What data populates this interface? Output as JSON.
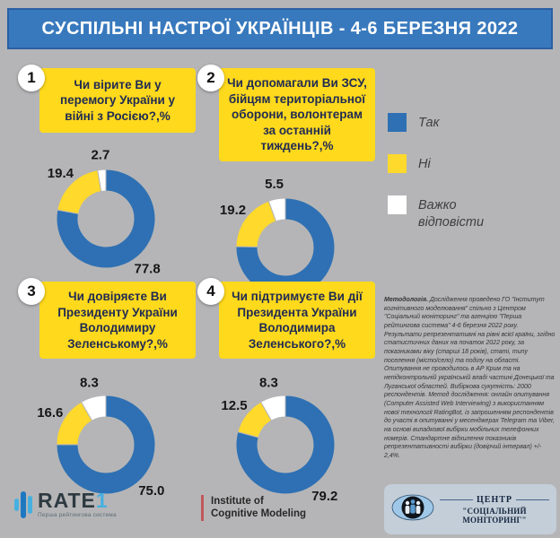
{
  "header": {
    "title": "СУСПІЛЬНІ НАСТРОЇ УКРАЇНЦІВ - 4-6 БЕРЕЗНЯ 2022"
  },
  "colors": {
    "background": "#b5b5b7",
    "header": "#3879bd",
    "header_border": "#2b5fa3",
    "yellow_box": "#ffd91c",
    "donut_blue": "#2e70b3",
    "donut_yellow": "#ffd92b",
    "donut_white": "#ffffff"
  },
  "legend": {
    "items": [
      {
        "label": "Так",
        "color": "#2e70b3"
      },
      {
        "label": "Ні",
        "color": "#ffd92b"
      },
      {
        "label": "Важко відповісти",
        "color": "#ffffff"
      }
    ]
  },
  "questions": [
    {
      "number": "1",
      "text": "Чи вірите Ви у перемогу України у війні з Росією?,%"
    },
    {
      "number": "2",
      "text": "Чи допомагали Ви ЗСУ, бійцям територіальної оборони, волонтерам за останній тиждень?,%"
    },
    {
      "number": "3",
      "text": "Чи довіряєте Ви Президенту України Володимиру Зеленському?,%"
    },
    {
      "number": "4",
      "text": "Чи підтримуєте Ви дії Президента України Володимира Зеленського?,%"
    }
  ],
  "chart_data": [
    {
      "type": "pie",
      "title": "Чи вірите Ви у перемогу України у війні з Росією?,%",
      "labels": [
        "Так",
        "Ні",
        "Важко відповісти"
      ],
      "values": [
        77.8,
        19.4,
        2.7
      ],
      "colors": [
        "#2e70b3",
        "#ffd92b",
        "#ffffff"
      ],
      "legend_position": "right"
    },
    {
      "type": "pie",
      "title": "Чи допомагали Ви ЗСУ, бійцям територіальної оборони, волонтерам за останній тиждень?,%",
      "labels": [
        "Так",
        "Ні",
        "Важко відповісти"
      ],
      "values": [
        75.3,
        19.2,
        5.5
      ],
      "colors": [
        "#2e70b3",
        "#ffd92b",
        "#ffffff"
      ],
      "legend_position": "right"
    },
    {
      "type": "pie",
      "title": "Чи довіряєте Ви Президенту України Володимиру Зеленському?,%",
      "labels": [
        "Так",
        "Ні",
        "Важко відповісти"
      ],
      "values": [
        75.0,
        16.6,
        8.3
      ],
      "colors": [
        "#2e70b3",
        "#ffd92b",
        "#ffffff"
      ],
      "legend_position": "right"
    },
    {
      "type": "pie",
      "title": "Чи підтримуєте Ви дії Президента України Володимира Зеленського?,%",
      "labels": [
        "Так",
        "Ні",
        "Важко відповісти"
      ],
      "values": [
        79.2,
        12.5,
        8.3
      ],
      "colors": [
        "#2e70b3",
        "#ffd92b",
        "#ffffff"
      ],
      "legend_position": "right"
    }
  ],
  "methodology": {
    "lead": "Методологія.",
    "body": " Дослідження проведено ГО \"Інститут когнітивного моделювання\" спільно з Центром \"Соціальний моніторинг\" та агенцією \"Перша рейтингова система\" 4-6 березня 2022 року. Результати репрезентативні на рівні всієї країни, згідно статистичних даних на початок 2022 року, за показниками віку (старші 18 років), статі, типу поселення (місто/село) та поділу на області. Опитування не проводилось в АР Крим та на непідконтрольній українській владі частині Донецької та Луганської областей. Вибіркова сукупність: 2000 респондентів. Метод дослідження: онлайн опитування (Computer Assisted Web Interviewing) з використанням нової технології RatingBot, із запрошенням респондентів до участі в опитуванні у месенджерах Telegram та Viber, на основі випадкової вибірки мобільних телефонних номерів. Стандартне відхилення показників репрезентативності вибірки (довірчий інтервал) +/- 2,4%."
  },
  "footer": {
    "rate1": {
      "text": "RATE",
      "accent": "1",
      "subtitle": "Перша рейтингова система"
    },
    "institute": {
      "line1": "Institute of",
      "line2": "Cognitive Modeling"
    },
    "center": {
      "line1": "ЦЕНТР",
      "line2": "\"СОЦІАЛЬНИЙ МОНІТОРИНГ\""
    }
  }
}
